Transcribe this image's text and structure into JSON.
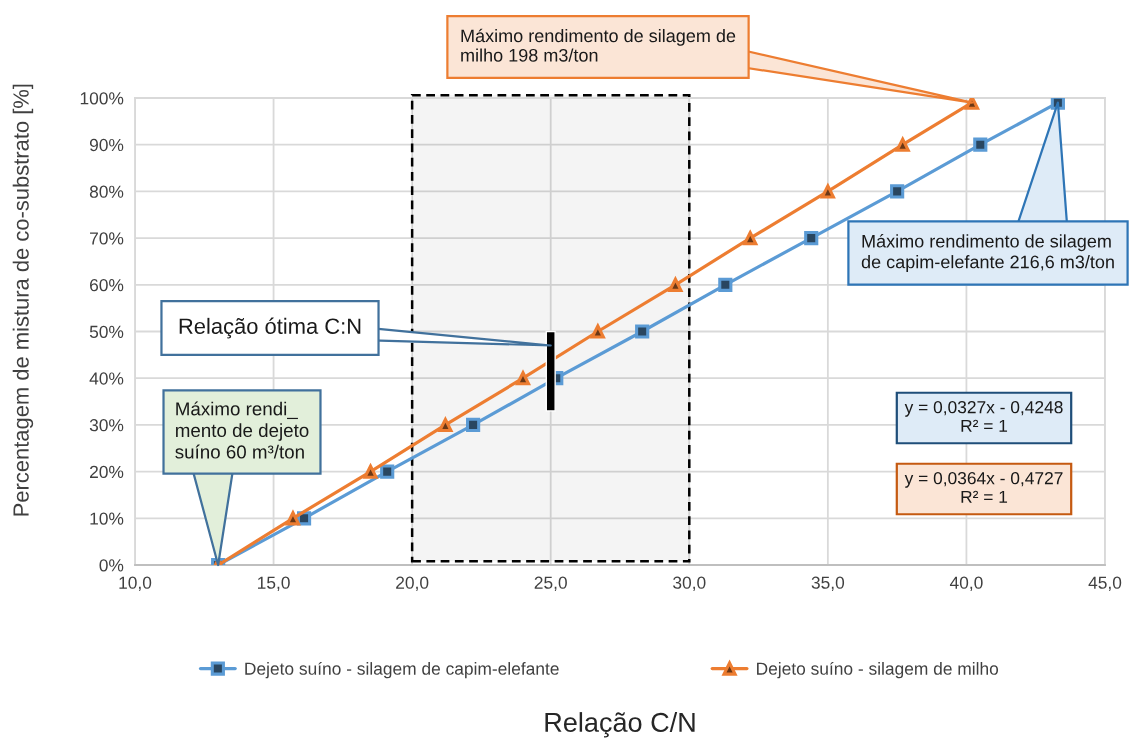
{
  "chart_data": {
    "type": "line",
    "xlabel": "Relação C/N",
    "ylabel": "Percentagem de mistura de co-substrato [%]",
    "xlim": [
      10,
      45
    ],
    "xticks": [
      {
        "value": 10,
        "label": "10,0"
      },
      {
        "value": 15,
        "label": "15,0"
      },
      {
        "value": 20,
        "label": "20,0"
      },
      {
        "value": 25,
        "label": "25,0"
      },
      {
        "value": 30,
        "label": "30,0"
      },
      {
        "value": 35,
        "label": "35,0"
      },
      {
        "value": 40,
        "label": "40,0"
      },
      {
        "value": 45,
        "label": "45,0"
      }
    ],
    "ylim": [
      0,
      100
    ],
    "yticks": [
      {
        "value": 0,
        "label": "0%"
      },
      {
        "value": 10,
        "label": "10%"
      },
      {
        "value": 20,
        "label": "20%"
      },
      {
        "value": 30,
        "label": "30%"
      },
      {
        "value": 40,
        "label": "40%"
      },
      {
        "value": 50,
        "label": "50%"
      },
      {
        "value": 60,
        "label": "60%"
      },
      {
        "value": 70,
        "label": "70%"
      },
      {
        "value": 80,
        "label": "80%"
      },
      {
        "value": 90,
        "label": "90%"
      },
      {
        "value": 100,
        "label": "100%"
      }
    ],
    "grid": true,
    "legend": "bottom",
    "series": [
      {
        "name": "Dejeto suíno - silagem de capim-elefante",
        "color": "#5b9bd5",
        "marker": "square",
        "x": [
          13.0,
          16.1,
          19.1,
          22.2,
          25.2,
          28.3,
          31.3,
          34.4,
          37.5,
          40.5,
          43.3
        ],
        "values": [
          0,
          10,
          20,
          30,
          40,
          50,
          60,
          70,
          80,
          90,
          99
        ]
      },
      {
        "name": "Dejeto suíno - silagem de milho",
        "color": "#ed7d31",
        "marker": "triangle",
        "x": [
          13.0,
          15.7,
          18.5,
          21.2,
          24.0,
          26.7,
          29.5,
          32.2,
          35.0,
          37.7,
          40.2
        ],
        "values": [
          0,
          10,
          20,
          30,
          40,
          50,
          60,
          70,
          80,
          90,
          99
        ]
      },
      {
        "type": "bar",
        "color": "#000000",
        "x": [
          25
        ],
        "base": [
          33
        ],
        "values": [
          17
        ]
      }
    ],
    "bands": [
      {
        "axis": "x",
        "from": 20,
        "to": 30,
        "color": "#000000"
      }
    ],
    "annotations": [
      {
        "text": "Máximo rendimento de silagem de\nmilho 198 m3/ton",
        "x": 40.2,
        "y": 99
      },
      {
        "text": "Máximo rendimento de silagem\nde capim-elefante 216,6 m3/ton",
        "x": 43.3,
        "y": 99
      },
      {
        "text": "Relação ótima C:N",
        "x": 25,
        "y": 47
      },
      {
        "text": "Máximo rendi_\nmento de dejeto\nsuíno 60 m³/ton",
        "x": 13.0,
        "y": 0
      },
      "y = 0,0327x - 0,4248\nR² = 1",
      "y = 0,0364x - 0,4727\nR² = 1"
    ]
  }
}
